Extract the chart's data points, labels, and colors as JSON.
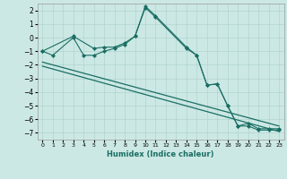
{
  "xlabel": "Humidex (Indice chaleur)",
  "bg_color": "#cce8e4",
  "grid_color": "#b0d4cf",
  "line_color": "#1a6e64",
  "xlim": [
    -0.5,
    23.5
  ],
  "ylim": [
    -7.5,
    2.5
  ],
  "yticks": [
    -7,
    -6,
    -5,
    -4,
    -3,
    -2,
    -1,
    0,
    1,
    2
  ],
  "xticks": [
    0,
    1,
    2,
    3,
    4,
    5,
    6,
    7,
    8,
    9,
    10,
    11,
    12,
    13,
    14,
    15,
    16,
    17,
    18,
    19,
    20,
    21,
    22,
    23
  ],
  "line1_x": [
    0,
    1,
    3,
    4,
    5,
    6,
    7,
    8,
    9,
    10,
    11,
    14,
    15,
    16,
    17,
    18,
    19,
    20,
    21,
    22,
    23
  ],
  "line1_y": [
    -1,
    -1.3,
    0,
    -1.3,
    -1.3,
    -1,
    -0.8,
    -0.5,
    0.1,
    2.2,
    1.5,
    -0.8,
    -1.3,
    -3.5,
    -3.4,
    -5.0,
    -6.5,
    -6.5,
    -6.8,
    -6.8,
    -6.8
  ],
  "line2_x": [
    0,
    3,
    5,
    6,
    7,
    8,
    9,
    10,
    11,
    14,
    15,
    16,
    17,
    18,
    19,
    20,
    21,
    22,
    23
  ],
  "line2_y": [
    -1,
    0.1,
    -0.8,
    -0.7,
    -0.7,
    -0.4,
    0.1,
    2.3,
    1.6,
    -0.7,
    -1.3,
    -3.5,
    -3.4,
    -5.0,
    -6.5,
    -6.3,
    -6.7,
    -6.7,
    -6.7
  ],
  "line3_x": [
    0,
    23
  ],
  "line3_y": [
    -1.8,
    -6.5
  ],
  "line4_x": [
    0,
    23
  ],
  "line4_y": [
    -2.1,
    -6.9
  ]
}
